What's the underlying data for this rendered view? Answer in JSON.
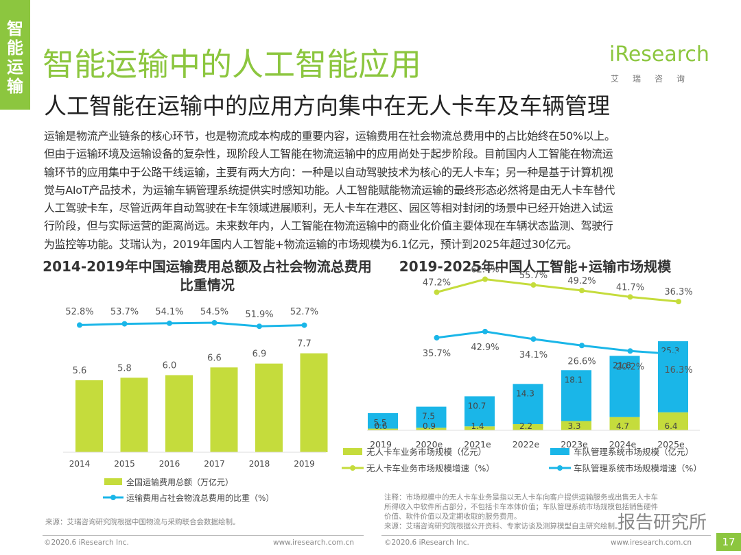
{
  "side_tab": [
    "智",
    "能",
    "运",
    "输"
  ],
  "main_title": "智能运输中的人工智能应用",
  "logo": {
    "text": "iResearch",
    "sub": "艾瑞咨询"
  },
  "subtitle": "人工智能在运输中的应用方向集中在无人卡车及车辆管理",
  "body_lines": [
    "运输是物流产业链条的核心环节，也是物流成本构成的重要内容，运输费用在社会物流总费用中的占比始终在50%以上。",
    "但由于运输环境及运输设备的复杂性，现阶段人工智能在物流运输中的应用尚处于起步阶段。目前国内人工智能在物流运",
    "输环节的应用集中于公路干线运输，主要有两大方向：一种是以自动驾驶技术为核心的无人卡车；另一种是基于计算机视",
    "觉与AIoT产品技术，为运输车辆管理系统提供实时感知功能。人工智能赋能物流运输的最终形态必然将是由无人卡车替代",
    "人工驾驶卡车，尽管近两年自动驾驶在卡车领域进展顺利，无人卡车在港区、园区等相对封闭的场景中已经开始进入试运",
    "行阶段，但与实际运营的距离尚远。未来数年内，人工智能在物流运输中的商业化价值主要体现在车辆状态监测、驾驶行",
    "为监控等功能。艾瑞认为，2019年国内人工智能+物流运输的市场规模为6.1亿元，预计到2025年超过30亿元。"
  ],
  "chart_data": [
    {
      "type": "bar",
      "title": "2014-2019年中国运输费用总额及占社会物流总费用比重情况",
      "categories": [
        "2014",
        "2015",
        "2016",
        "2017",
        "2018",
        "2019"
      ],
      "series": [
        {
          "name": "全国运输费用总额（万亿元）",
          "type": "bar",
          "color": "#c5dc3c",
          "values": [
            5.6,
            5.8,
            6.0,
            6.6,
            6.9,
            7.7
          ],
          "labels": [
            "5.6",
            "5.8",
            "6.0",
            "6.6",
            "6.9",
            "7.7"
          ]
        },
        {
          "name": "运输费用占社会物流总费用的比重（%）",
          "type": "line",
          "color": "#1ab6e8",
          "values": [
            52.8,
            53.7,
            54.1,
            54.5,
            51.9,
            52.7
          ],
          "labels": [
            "52.8%",
            "53.7%",
            "54.1%",
            "54.5%",
            "51.9%",
            "52.7%"
          ]
        }
      ],
      "legend": "bottom"
    },
    {
      "type": "bar",
      "stacked": true,
      "title": "2019-2025年中国人工智能+运输市场规模",
      "categories": [
        "2019",
        "2020e",
        "2021e",
        "2022e",
        "2023e",
        "2024e",
        "2025e"
      ],
      "series": [
        {
          "name": "无人卡车业务市场规模（亿元）",
          "type": "bar",
          "color": "#c5dc3c",
          "values": [
            0.6,
            0.9,
            1.4,
            2.2,
            3.3,
            4.7,
            6.4
          ],
          "labels": [
            "0.6",
            "0.9",
            "1.4",
            "2.2",
            "3.3",
            "4.7",
            "6.4"
          ]
        },
        {
          "name": "车队管理系统市场规模（亿元）",
          "type": "bar",
          "color": "#1ab6e8",
          "values": [
            5.5,
            7.5,
            10.7,
            14.3,
            18.1,
            21.8,
            25.3
          ],
          "labels": [
            "5.5",
            "7.5",
            "10.7",
            "14.3",
            "18.1",
            "21.8",
            "25.3"
          ]
        },
        {
          "name": "无人卡车业务市场规模增速（%）",
          "type": "line",
          "color": "#c5dc3c",
          "values": [
            47.2,
            62.4,
            55.7,
            49.2,
            41.7,
            36.3
          ],
          "x": [
            "2020e",
            "2021e",
            "2022e",
            "2023e",
            "2024e",
            "2025e"
          ],
          "labels": [
            "47.2%",
            "62.4%",
            "55.7%",
            "49.2%",
            "41.7%",
            "36.3%"
          ]
        },
        {
          "name": "车队管理系统市场规模增速（%）",
          "type": "line",
          "color": "#1ab6e8",
          "values": [
            35.7,
            42.9,
            34.1,
            26.6,
            20.2,
            16.3
          ],
          "x": [
            "2020e",
            "2021e",
            "2022e",
            "2023e",
            "2024e",
            "2025e"
          ],
          "labels": [
            "35.7%",
            "42.9%",
            "34.1%",
            "26.6%",
            "20.2%",
            "16.3%"
          ]
        }
      ],
      "legend": "bottom"
    }
  ],
  "source_left": "来源：艾瑞咨询研究院根据中国物流与采购联合会数据绘制。",
  "note_lines": [
    "注释：市场规模中的无人卡车业务是指以无人卡车向客户提供运输服务或出售无人卡车",
    "所得收入中软件所占部分，不包括卡车本体价值；车队管理系统市场规模包括销售硬件",
    "价值、软件价值以及定期收取的服务费用。",
    "来源：艾瑞咨询研究院根据公开资料、专家访谈及测算模型自主研究绘制。"
  ],
  "footer": {
    "left_copyright": "©2020.6 iResearch Inc.",
    "left_url": "www.iresearch.com.cn",
    "right_copyright": "©2020.6 iResearch Inc.",
    "right_url": "www.iresearch.com.cn",
    "page": "17"
  },
  "watermark": "报告研究所"
}
